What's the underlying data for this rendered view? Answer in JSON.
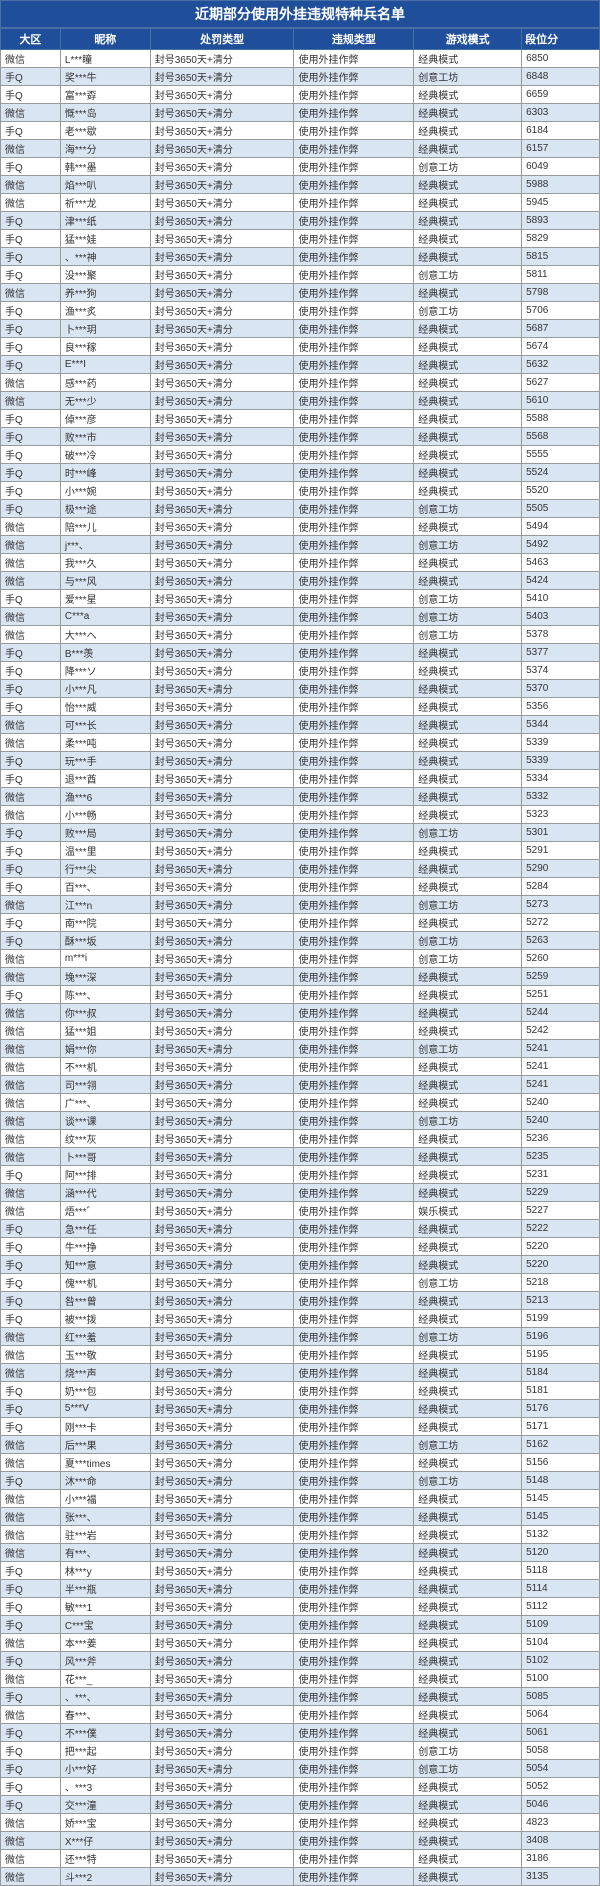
{
  "title": "近期部分使用外挂违规特种兵名单",
  "columns": [
    "大区",
    "昵称",
    "处罚类型",
    "违规类型",
    "游戏模式",
    "段位分"
  ],
  "col_widths": [
    "10%",
    "15%",
    "24%",
    "20%",
    "18%",
    "13%"
  ],
  "penalty": "封号3650天+清分",
  "violation": "使用外挂作弊",
  "colors": {
    "header_bg": "#1f4e9b",
    "header_fg": "#ffffff",
    "row_alt_bg": "#d9e5f2",
    "border": "#999999"
  },
  "rows": [
    [
      "微信",
      "L***瞳",
      "经典模式",
      "6850"
    ],
    [
      "手Q",
      "奖***牛",
      "创意工坊",
      "6848"
    ],
    [
      "手Q",
      "富***孬",
      "经典模式",
      "6659"
    ],
    [
      "微信",
      "慨***岛",
      "经典模式",
      "6303"
    ],
    [
      "手Q",
      "老***歇",
      "经典模式",
      "6184"
    ],
    [
      "微信",
      "海***分",
      "经典模式",
      "6157"
    ],
    [
      "手Q",
      "韩***墨",
      "创意工坊",
      "6049"
    ],
    [
      "微信",
      "焰***叭",
      "经典模式",
      "5988"
    ],
    [
      "微信",
      "祈***龙",
      "经典模式",
      "5945"
    ],
    [
      "手Q",
      "津***纸",
      "经典模式",
      "5893"
    ],
    [
      "手Q",
      "猛***娃",
      "经典模式",
      "5829"
    ],
    [
      "手Q",
      "、***神",
      "经典模式",
      "5815"
    ],
    [
      "手Q",
      "没***聚",
      "创意工坊",
      "5811"
    ],
    [
      "微信",
      "养***狗",
      "经典模式",
      "5798"
    ],
    [
      "手Q",
      "渔***炙",
      "创意工坊",
      "5706"
    ],
    [
      "手Q",
      "卜***玥",
      "经典模式",
      "5687"
    ],
    [
      "手Q",
      "良***稼",
      "经典模式",
      "5674"
    ],
    [
      "手Q",
      "E***I",
      "经典模式",
      "5632"
    ],
    [
      "微信",
      "感***药",
      "经典模式",
      "5627"
    ],
    [
      "微信",
      "无***少",
      "经典模式",
      "5610"
    ],
    [
      "手Q",
      "倬***彦",
      "经典模式",
      "5588"
    ],
    [
      "手Q",
      "败***市",
      "经典模式",
      "5568"
    ],
    [
      "手Q",
      "破***冷",
      "经典模式",
      "5555"
    ],
    [
      "手Q",
      "时***峰",
      "经典模式",
      "5524"
    ],
    [
      "手Q",
      "小***婉",
      "经典模式",
      "5520"
    ],
    [
      "手Q",
      "极***途",
      "创意工坊",
      "5505"
    ],
    [
      "微信",
      "陪***儿",
      "经典模式",
      "5494"
    ],
    [
      "微信",
      "j***、",
      "创意工坊",
      "5492"
    ],
    [
      "微信",
      "我***久",
      "经典模式",
      "5463"
    ],
    [
      "微信",
      "与***风",
      "经典模式",
      "5424"
    ],
    [
      "手Q",
      "爱***星",
      "创意工坊",
      "5410"
    ],
    [
      "微信",
      "C***a",
      "创意工坊",
      "5403"
    ],
    [
      "微信",
      "大***へ",
      "创意工坊",
      "5378"
    ],
    [
      "手Q",
      "B***羡",
      "经典模式",
      "5377"
    ],
    [
      "手Q",
      "降***ソ",
      "经典模式",
      "5374"
    ],
    [
      "手Q",
      "小***凡",
      "经典模式",
      "5370"
    ],
    [
      "手Q",
      "怡***威",
      "经典模式",
      "5356"
    ],
    [
      "微信",
      "可***长",
      "经典模式",
      "5344"
    ],
    [
      "微信",
      "柔***吨",
      "经典模式",
      "5339"
    ],
    [
      "手Q",
      "玩***手",
      "经典模式",
      "5339"
    ],
    [
      "手Q",
      "退***酋",
      "经典模式",
      "5334"
    ],
    [
      "微信",
      "渔***6",
      "经典模式",
      "5332"
    ],
    [
      "微信",
      "小***畅",
      "经典模式",
      "5323"
    ],
    [
      "手Q",
      "败***局",
      "创意工坊",
      "5301"
    ],
    [
      "手Q",
      "温***里",
      "经典模式",
      "5291"
    ],
    [
      "手Q",
      "行***尖",
      "经典模式",
      "5290"
    ],
    [
      "手Q",
      "百***、",
      "经典模式",
      "5284"
    ],
    [
      "微信",
      "江***n",
      "创意工坊",
      "5273"
    ],
    [
      "手Q",
      "南***院",
      "经典模式",
      "5272"
    ],
    [
      "手Q",
      "酥***坂",
      "创意工坊",
      "5263"
    ],
    [
      "微信",
      "m***i",
      "创意工坊",
      "5260"
    ],
    [
      "微信",
      "堍***深",
      "经典模式",
      "5259"
    ],
    [
      "手Q",
      "陈***、",
      "经典模式",
      "5251"
    ],
    [
      "微信",
      "你***叔",
      "经典模式",
      "5244"
    ],
    [
      "微信",
      "猛***姐",
      "经典模式",
      "5242"
    ],
    [
      "微信",
      "娟***你",
      "创意工坊",
      "5241"
    ],
    [
      "微信",
      "不***机",
      "经典模式",
      "5241"
    ],
    [
      "微信",
      "司***翎",
      "经典模式",
      "5241"
    ],
    [
      "微信",
      "广***、",
      "经典模式",
      "5240"
    ],
    [
      "微信",
      "谈***课",
      "创意工坊",
      "5240"
    ],
    [
      "微信",
      "纹***灰",
      "经典模式",
      "5236"
    ],
    [
      "微信",
      "卜***哥",
      "经典模式",
      "5235"
    ],
    [
      "手Q",
      "阿***排",
      "经典模式",
      "5231"
    ],
    [
      "微信",
      "涵***代",
      "经典模式",
      "5229"
    ],
    [
      "微信",
      "焐***゛",
      "娱乐模式",
      "5227"
    ],
    [
      "手Q",
      "急***任",
      "经典模式",
      "5222"
    ],
    [
      "手Q",
      "牛***挣",
      "经典模式",
      "5220"
    ],
    [
      "手Q",
      "知***意",
      "经典模式",
      "5220"
    ],
    [
      "手Q",
      "傀***机",
      "创意工坊",
      "5218"
    ],
    [
      "手Q",
      "咎***曾",
      "经典模式",
      "5213"
    ],
    [
      "手Q",
      "被***拨",
      "经典模式",
      "5199"
    ],
    [
      "微信",
      "红***羞",
      "创意工坊",
      "5196"
    ],
    [
      "微信",
      "玉***敬",
      "经典模式",
      "5195"
    ],
    [
      "微信",
      "烧***声",
      "经典模式",
      "5184"
    ],
    [
      "手Q",
      "奶***包",
      "经典模式",
      "5181"
    ],
    [
      "手Q",
      "5***V",
      "经典模式",
      "5176"
    ],
    [
      "手Q",
      "刚***卡",
      "经典模式",
      "5171"
    ],
    [
      "微信",
      "后***果",
      "创意工坊",
      "5162"
    ],
    [
      "微信",
      "夏***times",
      "经典模式",
      "5156"
    ],
    [
      "手Q",
      "沐***命",
      "创意工坊",
      "5148"
    ],
    [
      "微信",
      "小***福",
      "经典模式",
      "5145"
    ],
    [
      "微信",
      "张***、",
      "经典模式",
      "5145"
    ],
    [
      "微信",
      "驻***岩",
      "经典模式",
      "5132"
    ],
    [
      "微信",
      "有***、",
      "经典模式",
      "5120"
    ],
    [
      "手Q",
      "林***y",
      "经典模式",
      "5118"
    ],
    [
      "手Q",
      "半***瓶",
      "经典模式",
      "5114"
    ],
    [
      "手Q",
      "敏***1",
      "经典模式",
      "5112"
    ],
    [
      "手Q",
      "C***宝",
      "经典模式",
      "5109"
    ],
    [
      "微信",
      "本***姜",
      "经典模式",
      "5104"
    ],
    [
      "手Q",
      "风***斧",
      "经典模式",
      "5102"
    ],
    [
      "微信",
      "花***_",
      "经典模式",
      "5100"
    ],
    [
      "手Q",
      "、***、",
      "经典模式",
      "5085"
    ],
    [
      "微信",
      "春***、",
      "经典模式",
      "5064"
    ],
    [
      "手Q",
      "不***僕",
      "经典模式",
      "5061"
    ],
    [
      "手Q",
      "把***起",
      "创意工坊",
      "5058"
    ],
    [
      "手Q",
      "小***好",
      "创意工坊",
      "5054"
    ],
    [
      "手Q",
      "、***3",
      "经典模式",
      "5052"
    ],
    [
      "手Q",
      "交***潼",
      "经典模式",
      "5046"
    ],
    [
      "微信",
      "娇***宝",
      "经典模式",
      "4823"
    ],
    [
      "微信",
      "X***仔",
      "经典模式",
      "3408"
    ],
    [
      "微信",
      "还***特",
      "经典模式",
      "3186"
    ],
    [
      "微信",
      "斗***2",
      "经典模式",
      "3135"
    ]
  ]
}
